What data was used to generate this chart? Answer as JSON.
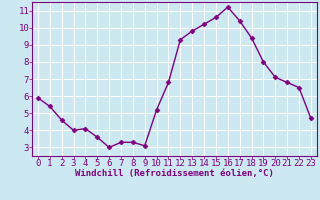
{
  "x": [
    0,
    1,
    2,
    3,
    4,
    5,
    6,
    7,
    8,
    9,
    10,
    11,
    12,
    13,
    14,
    15,
    16,
    17,
    18,
    19,
    20,
    21,
    22,
    23
  ],
  "y": [
    5.9,
    5.4,
    4.6,
    4.0,
    4.1,
    3.6,
    3.0,
    3.3,
    3.3,
    3.1,
    5.2,
    6.8,
    9.3,
    9.8,
    10.2,
    10.6,
    11.2,
    10.4,
    9.4,
    8.0,
    7.1,
    6.8,
    6.5,
    4.7
  ],
  "line_color": "#800080",
  "marker": "D",
  "marker_size": 2.5,
  "bg_color": "#cce8f0",
  "grid_color": "#ffffff",
  "xlabel": "Windchill (Refroidissement éolien,°C)",
  "xlabel_color": "#800080",
  "tick_color": "#800080",
  "xlim": [
    -0.5,
    23.5
  ],
  "ylim": [
    2.5,
    11.5
  ],
  "yticks": [
    3,
    4,
    5,
    6,
    7,
    8,
    9,
    10,
    11
  ],
  "xticks": [
    0,
    1,
    2,
    3,
    4,
    5,
    6,
    7,
    8,
    9,
    10,
    11,
    12,
    13,
    14,
    15,
    16,
    17,
    18,
    19,
    20,
    21,
    22,
    23
  ],
  "spine_color": "#800080",
  "tick_font_size": 6.5,
  "xlabel_font_size": 6.5,
  "linewidth": 1.0
}
